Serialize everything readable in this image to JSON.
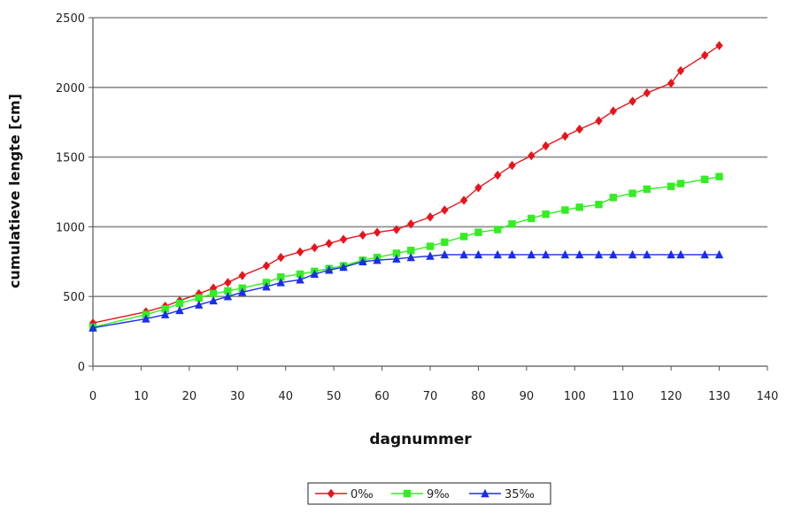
{
  "chart_data": {
    "type": "line",
    "title": "",
    "xlabel": "dagnummer",
    "ylabel": "cumulatieve lengte [cm]",
    "xlim": [
      0,
      140
    ],
    "ylim": [
      0,
      2500
    ],
    "x_ticks": [
      0,
      10,
      20,
      30,
      40,
      50,
      60,
      70,
      80,
      90,
      100,
      110,
      120,
      130,
      140
    ],
    "y_ticks": [
      0,
      500,
      1000,
      1500,
      2000,
      2500
    ],
    "grid": "horizontal",
    "legend_position": "bottom",
    "series": [
      {
        "name": "0‰",
        "color": "#e8141b",
        "marker": "diamond",
        "x": [
          0,
          11,
          15,
          18,
          22,
          25,
          28,
          31,
          36,
          39,
          43,
          46,
          49,
          52,
          56,
          59,
          63,
          66,
          70,
          73,
          77,
          80,
          84,
          87,
          91,
          94,
          98,
          101,
          105,
          108,
          112,
          115,
          120,
          122,
          127,
          130
        ],
        "y": [
          310,
          390,
          430,
          470,
          520,
          560,
          600,
          650,
          720,
          780,
          820,
          850,
          880,
          910,
          940,
          960,
          980,
          1020,
          1070,
          1120,
          1190,
          1280,
          1370,
          1440,
          1510,
          1580,
          1650,
          1700,
          1760,
          1830,
          1900,
          1960,
          2030,
          2120,
          2230,
          2300
        ]
      },
      {
        "name": "9‰",
        "color": "#33ee22",
        "marker": "square",
        "x": [
          0,
          11,
          15,
          18,
          22,
          25,
          28,
          31,
          36,
          39,
          43,
          46,
          49,
          52,
          56,
          59,
          63,
          66,
          70,
          73,
          77,
          80,
          84,
          87,
          91,
          94,
          98,
          101,
          105,
          108,
          112,
          115,
          120,
          122,
          127,
          130
        ],
        "y": [
          280,
          370,
          410,
          450,
          490,
          520,
          540,
          560,
          600,
          640,
          660,
          680,
          700,
          720,
          760,
          780,
          810,
          830,
          860,
          890,
          930,
          960,
          980,
          1020,
          1060,
          1090,
          1120,
          1140,
          1160,
          1210,
          1240,
          1270,
          1290,
          1310,
          1340,
          1360
        ]
      },
      {
        "name": "35‰",
        "color": "#1a2ee8",
        "marker": "triangle",
        "x": [
          0,
          11,
          15,
          18,
          22,
          25,
          28,
          31,
          36,
          39,
          43,
          46,
          49,
          52,
          56,
          59,
          63,
          66,
          70,
          73,
          77,
          80,
          84,
          87,
          91,
          94,
          98,
          101,
          105,
          108,
          112,
          115,
          120,
          122,
          127,
          130
        ],
        "y": [
          275,
          340,
          370,
          400,
          440,
          470,
          500,
          530,
          570,
          600,
          620,
          660,
          690,
          710,
          750,
          760,
          770,
          780,
          790,
          800,
          800,
          800,
          800,
          800,
          800,
          800,
          800,
          800,
          800,
          800,
          800,
          800,
          800,
          800,
          800,
          800
        ]
      }
    ]
  }
}
